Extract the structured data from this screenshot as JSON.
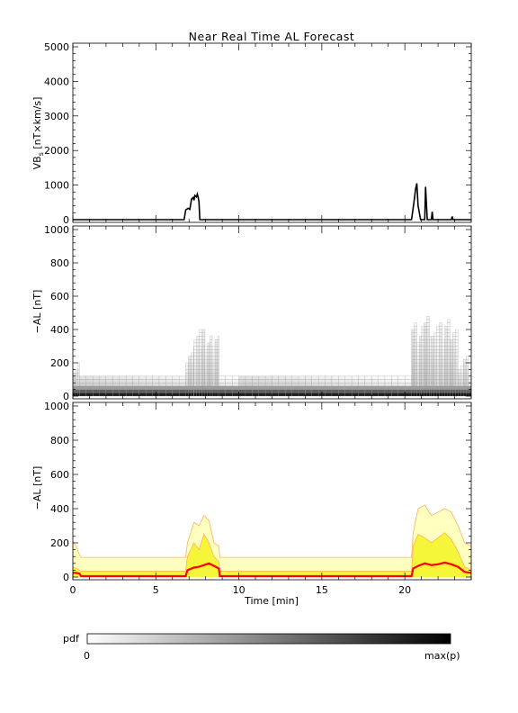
{
  "title": "Near Real Time AL Forecast",
  "chart_data": [
    {
      "type": "line",
      "panel": "top",
      "ylabel_main": "VB",
      "ylabel_sub": "s",
      "ylabel_tail": " [nT×km/s]",
      "xlim": [
        0,
        24
      ],
      "ylim": [
        0,
        5000
      ],
      "yticks": [
        0,
        1000,
        2000,
        3000,
        4000,
        5000
      ],
      "series": [
        {
          "x": [
            0,
            6.7,
            6.8,
            6.95,
            7.05,
            7.15,
            7.25,
            7.3,
            7.35,
            7.45,
            7.5,
            7.55,
            7.6,
            7.65,
            20.4,
            20.55,
            20.65,
            20.72,
            20.8,
            20.95,
            21.2,
            21.25,
            21.3,
            21.35,
            21.45,
            21.6,
            21.65,
            21.7,
            21.75,
            22.8,
            22.85,
            22.9,
            24
          ],
          "y": [
            0,
            0,
            280,
            330,
            300,
            600,
            640,
            560,
            700,
            660,
            740,
            650,
            500,
            0,
            0,
            500,
            900,
            1050,
            400,
            0,
            0,
            950,
            450,
            0,
            0,
            0,
            230,
            0,
            0,
            0,
            90,
            0,
            0
          ]
        }
      ]
    },
    {
      "type": "heatmap",
      "panel": "middle",
      "ylabel": "−AL [nT]",
      "xlim": [
        0,
        24
      ],
      "ylim": [
        0,
        1000
      ],
      "yticks": [
        0,
        200,
        400,
        600,
        800,
        1000
      ],
      "bin_size": 20,
      "columns": [
        {
          "from": 0,
          "to": 0.4,
          "max": 200
        },
        {
          "from": 0.4,
          "to": 6.8,
          "max": 120
        },
        {
          "from": 6.8,
          "to": 7.3,
          "max": 260
        },
        {
          "from": 7.3,
          "to": 7.8,
          "max": 340
        },
        {
          "from": 7.8,
          "to": 8.4,
          "max": 360
        },
        {
          "from": 8.4,
          "to": 8.8,
          "max": 300
        },
        {
          "from": 8.8,
          "to": 20.4,
          "max": 120
        },
        {
          "from": 20.4,
          "to": 21.0,
          "max": 380
        },
        {
          "from": 21.0,
          "to": 21.6,
          "max": 420
        },
        {
          "from": 21.6,
          "to": 22.4,
          "max": 400
        },
        {
          "from": 22.4,
          "to": 23.2,
          "max": 400
        },
        {
          "from": 23.2,
          "to": 24,
          "max": 200
        }
      ],
      "colorbar": {
        "label": "pdf",
        "min_label": "0",
        "max_label": "max(p)"
      }
    },
    {
      "type": "area",
      "panel": "bottom",
      "ylabel": "−AL [nT]",
      "xlabel": "Time [min]",
      "xlim": [
        0,
        24
      ],
      "ylim": [
        0,
        1000
      ],
      "yticks": [
        0,
        200,
        400,
        600,
        800,
        1000
      ],
      "xticks": [
        0,
        5,
        10,
        15,
        20
      ],
      "x": [
        0,
        0.2,
        0.4,
        0.5,
        6.8,
        6.9,
        7.3,
        7.6,
        7.9,
        8.2,
        8.5,
        8.8,
        8.85,
        20.4,
        20.5,
        20.8,
        21.2,
        21.6,
        22.0,
        22.4,
        22.8,
        23.2,
        23.6,
        24
      ],
      "bands": [
        {
          "name": "outer",
          "color": "#ffffc0",
          "upper": [
            210,
            180,
            130,
            115,
            115,
            200,
            320,
            300,
            360,
            330,
            200,
            180,
            115,
            115,
            260,
            400,
            420,
            360,
            380,
            400,
            380,
            300,
            200,
            180
          ]
        },
        {
          "name": "inner",
          "color": "#f5f53a",
          "upper": [
            60,
            50,
            40,
            35,
            35,
            120,
            200,
            160,
            250,
            200,
            120,
            90,
            35,
            35,
            180,
            250,
            230,
            200,
            230,
            260,
            220,
            150,
            60,
            40
          ]
        }
      ],
      "median": [
        25,
        25,
        20,
        5,
        5,
        40,
        55,
        60,
        70,
        80,
        65,
        50,
        5,
        5,
        50,
        65,
        80,
        70,
        75,
        85,
        75,
        60,
        30,
        25
      ],
      "median_color": "#ff0000",
      "outline_color": "#ffb060"
    }
  ]
}
